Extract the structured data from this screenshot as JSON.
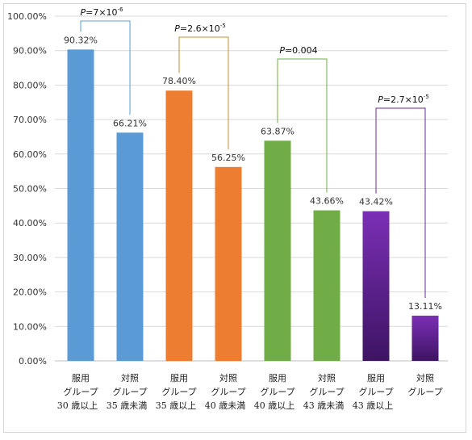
{
  "chart_data": {
    "type": "bar",
    "ylim": [
      0,
      100
    ],
    "y_tick_labels": [
      "0.00%",
      "10.00%",
      "20.00%",
      "30.00%",
      "40.00%",
      "50.00%",
      "60.00%",
      "70.00%",
      "80.00%",
      "90.00%",
      "100.00%"
    ],
    "grid": true,
    "categories": [
      [
        "服用",
        "グループ",
        "30 歳以上"
      ],
      [
        "対照",
        "グループ",
        "35 歳未満"
      ],
      [
        "服用",
        "グループ",
        "35 歳以上"
      ],
      [
        "対照",
        "グループ",
        "40 歳未満"
      ],
      [
        "服用",
        "グループ",
        "40 歳以上"
      ],
      [
        "対照",
        "グループ",
        "43 歳未満"
      ],
      [
        "服用",
        "グループ",
        "43 歳以上"
      ],
      [
        "対照",
        "グループ",
        ""
      ]
    ],
    "values": [
      90.32,
      66.21,
      78.4,
      56.25,
      63.87,
      43.66,
      43.42,
      13.11
    ],
    "value_labels": [
      "90.32%",
      "66.21%",
      "78.40%",
      "56.25%",
      "63.87%",
      "43.66%",
      "43.42%",
      "13.11%"
    ],
    "bar_colors": [
      "#5b9bd5",
      "#5b9bd5",
      "#ed7d31",
      "#ed7d31",
      "#70ad47",
      "#70ad47",
      "#5b2088",
      "#5b2088"
    ],
    "comparisons": [
      {
        "pair": [
          0,
          1
        ],
        "p_prefix": "P",
        "p_value": "=7×10",
        "p_exp": "-6",
        "color": "#5b9bd5"
      },
      {
        "pair": [
          2,
          3
        ],
        "p_prefix": "P",
        "p_value": "=2.6×10",
        "p_exp": "-5",
        "color": "#c58c3a"
      },
      {
        "pair": [
          4,
          5
        ],
        "p_prefix": "P",
        "p_value": "=0.004",
        "p_exp": "",
        "color": "#70ad47"
      },
      {
        "pair": [
          6,
          7
        ],
        "p_prefix": "P",
        "p_value": "=2.7×10",
        "p_exp": "-5",
        "color": "#6a2a9a"
      }
    ]
  }
}
